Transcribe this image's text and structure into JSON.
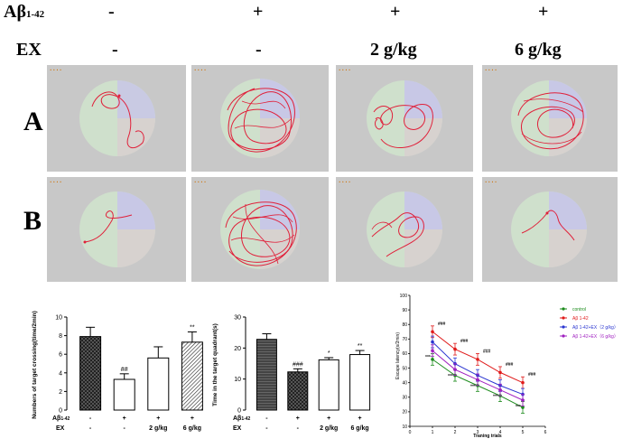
{
  "header": {
    "abeta_label": "Aβ",
    "abeta_sub": "1-42",
    "ex_label": "EX",
    "abeta_values": [
      "-",
      "+",
      "+",
      "+"
    ],
    "ex_values": [
      "-",
      "-",
      "2 g/kg",
      "6 g/kg"
    ]
  },
  "rows": {
    "a": "A",
    "b": "B"
  },
  "colors": {
    "panel_bg": "#c8c8c8",
    "track": "#e0203a",
    "control": "#1a8a1a",
    "model": "#e01a1a",
    "ex2": "#2a35d0",
    "ex6": "#a020c0"
  },
  "chart_data": [
    {
      "type": "bar",
      "ylabel": "Numbers of target crossing(time/2min)",
      "ylim": [
        0,
        10
      ],
      "yticks": [
        "0",
        "2",
        "4",
        "6",
        "8",
        "10"
      ],
      "values": [
        7.9,
        3.3,
        5.6,
        7.3
      ],
      "errors": [
        1.0,
        0.6,
        1.2,
        1.1
      ],
      "annotations": [
        "",
        "##",
        "",
        "**"
      ],
      "xrow1_label": "Aβ",
      "xrow1_sub": "1-42",
      "xrow1": [
        "-",
        "+",
        "+",
        "+"
      ],
      "xrow2_label": "EX",
      "xrow2": [
        "-",
        "-",
        "2 g/kg",
        "6 g/kg"
      ]
    },
    {
      "type": "bar",
      "ylabel": "Time in the target quadrant(s)",
      "ylim": [
        0,
        30
      ],
      "yticks": [
        "0",
        "10",
        "20",
        "30"
      ],
      "values": [
        22.8,
        12.3,
        16.2,
        17.9
      ],
      "errors": [
        1.8,
        1.0,
        0.7,
        1.3
      ],
      "annotations": [
        "",
        "###",
        "*",
        "**"
      ],
      "xrow1_label": "Aβ",
      "xrow1_sub": "1-42",
      "xrow1": [
        "-",
        "+",
        "+",
        "+"
      ],
      "xrow2_label": "EX",
      "xrow2": [
        "-",
        "-",
        "2 g/kg",
        "6 g/kg"
      ]
    },
    {
      "type": "line",
      "xlabel": "Traning trials",
      "ylabel": "Escape latency(s/2min)",
      "xlim": [
        0,
        6
      ],
      "ylim": [
        10,
        100
      ],
      "xticks": [
        "0",
        "1",
        "2",
        "3",
        "4",
        "5",
        "6"
      ],
      "yticks": [
        "10",
        "20",
        "30",
        "40",
        "50",
        "60",
        "70",
        "80",
        "90",
        "100"
      ],
      "x": [
        1,
        2,
        3,
        4,
        5
      ],
      "series": [
        {
          "name": "control",
          "color": "#1a8a1a",
          "values": [
            56,
            45,
            38,
            31,
            23
          ],
          "error": 4
        },
        {
          "name": "Aβ 1-42",
          "color": "#e01a1a",
          "values": [
            75,
            63,
            56,
            47,
            40
          ],
          "error": 4
        },
        {
          "name": "Aβ 1-42+EX（2 g/kg）",
          "color": "#2a35d0",
          "values": [
            68,
            53,
            45,
            38,
            32
          ],
          "error": 4
        },
        {
          "name": "Aβ 1-42+EX（6 g/kg）",
          "color": "#a020c0",
          "values": [
            62,
            49,
            42,
            35,
            28
          ],
          "error": 4
        }
      ],
      "hash_labels": [
        "###",
        "###",
        "###",
        "###",
        "###"
      ],
      "star_labels": [
        "***",
        "***",
        "***",
        "***",
        "***"
      ]
    }
  ]
}
